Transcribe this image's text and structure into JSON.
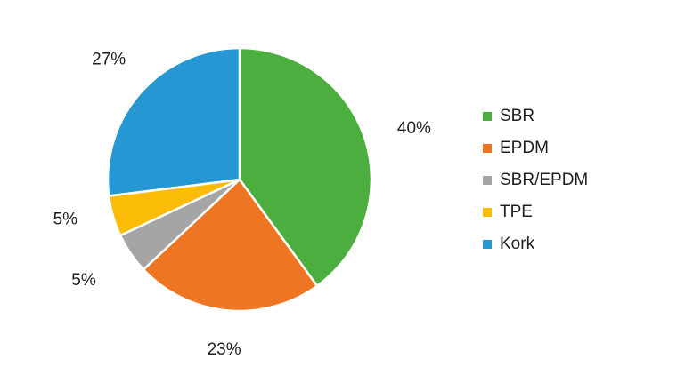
{
  "chart_data": {
    "type": "pie",
    "title": "",
    "categories": [
      "SBR",
      "EPDM",
      "SBR/EPDM",
      "TPE",
      "Kork"
    ],
    "values": [
      40,
      23,
      5,
      5,
      27
    ],
    "value_labels": [
      "40%",
      "23%",
      "5%",
      "5%",
      "27%"
    ],
    "colors": [
      "#4cae3e",
      "#ee7623",
      "#a5a5a5",
      "#fbbc05",
      "#2598d4"
    ],
    "start_angle_deg": 0,
    "direction": "clockwise",
    "legend_position": "right"
  }
}
